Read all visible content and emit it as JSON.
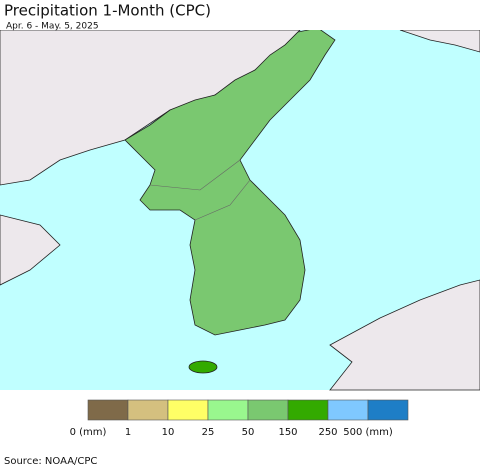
{
  "header": {
    "title": "Precipitation 1-Month (CPC)",
    "subtitle": "Apr. 6 - May. 5, 2025"
  },
  "legend": {
    "colors": [
      "#7f6a49",
      "#d4c07f",
      "#ffff66",
      "#99f78e",
      "#7ac870",
      "#33aa00",
      "#7fc8ff",
      "#1e7ec6"
    ],
    "labels": [
      "0 (mm)",
      "1",
      "10",
      "25",
      "50",
      "150",
      "250",
      "500 (mm)"
    ]
  },
  "footer": {
    "source": "Source: NOAA/CPC"
  }
}
